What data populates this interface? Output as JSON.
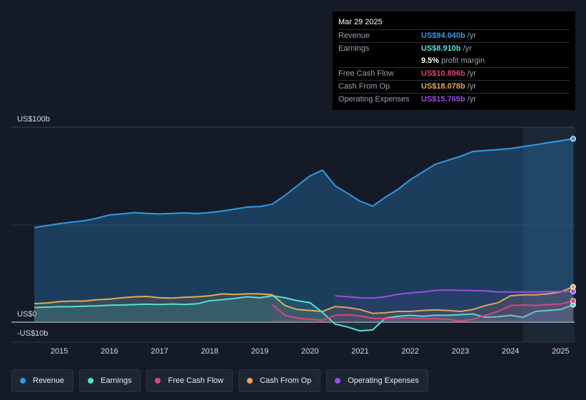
{
  "chart_data": {
    "type": "area",
    "title": "",
    "ylabel_top": "US$100b",
    "ylabel_zero": "US$0",
    "ylabel_bottom": "-US$10b",
    "ylim": [
      -10,
      100
    ],
    "xlim": [
      2014.5,
      2025.25
    ],
    "x_ticks": [
      2015,
      2016,
      2017,
      2018,
      2019,
      2020,
      2021,
      2022,
      2023,
      2024,
      2025
    ],
    "x_tick_labels": [
      "2015",
      "2016",
      "2017",
      "2018",
      "2019",
      "2020",
      "2021",
      "2022",
      "2023",
      "2024",
      "2025"
    ],
    "forecast_start": 2024.25,
    "series": [
      {
        "name": "Revenue",
        "key": "revenue",
        "color": "#2e9be8",
        "x": [
          2014.5,
          2014.75,
          2015.0,
          2015.25,
          2015.5,
          2015.75,
          2016.0,
          2016.25,
          2016.5,
          2016.75,
          2017.0,
          2017.25,
          2017.5,
          2017.75,
          2018.0,
          2018.25,
          2018.5,
          2018.75,
          2019.0,
          2019.25,
          2019.5,
          2019.75,
          2020.0,
          2020.25,
          2020.5,
          2020.75,
          2021.0,
          2021.25,
          2021.5,
          2021.75,
          2022.0,
          2022.25,
          2022.5,
          2022.75,
          2023.0,
          2023.25,
          2023.5,
          2023.75,
          2024.0,
          2024.25,
          2024.5,
          2024.75,
          2025.0,
          2025.25
        ],
        "values": [
          48.5,
          49.5,
          50.5,
          51.3,
          52.0,
          53.3,
          55.0,
          55.5,
          56.2,
          55.8,
          55.5,
          55.8,
          56.0,
          55.7,
          56.2,
          57.0,
          58.0,
          59.0,
          59.3,
          60.5,
          65.0,
          70.0,
          75.0,
          78.0,
          70.0,
          66.0,
          62.0,
          59.5,
          64.0,
          68.0,
          73.0,
          77.0,
          81.0,
          83.0,
          85.0,
          87.5,
          88.0,
          88.5,
          89.0,
          90.0,
          91.0,
          92.0,
          93.0,
          94.04
        ]
      },
      {
        "name": "Earnings",
        "key": "earnings",
        "color": "#56e0d2",
        "x": [
          2014.5,
          2014.75,
          2015.0,
          2015.25,
          2015.5,
          2015.75,
          2016.0,
          2016.25,
          2016.5,
          2016.75,
          2017.0,
          2017.25,
          2017.5,
          2017.75,
          2018.0,
          2018.25,
          2018.5,
          2018.75,
          2019.0,
          2019.25,
          2019.5,
          2019.75,
          2020.0,
          2020.25,
          2020.5,
          2020.75,
          2021.0,
          2021.25,
          2021.5,
          2021.75,
          2022.0,
          2022.25,
          2022.5,
          2022.75,
          2023.0,
          2023.25,
          2023.5,
          2023.75,
          2024.0,
          2024.25,
          2024.5,
          2024.75,
          2025.0,
          2025.25
        ],
        "values": [
          7.5,
          7.7,
          7.9,
          8.0,
          8.2,
          8.3,
          8.7,
          8.8,
          9.0,
          9.2,
          9.0,
          9.3,
          9.1,
          9.4,
          11.0,
          11.5,
          12.2,
          13.0,
          12.5,
          13.5,
          12.5,
          11.0,
          10.0,
          5.0,
          -1.0,
          -2.5,
          -4.5,
          -4.0,
          2.0,
          3.0,
          3.5,
          3.0,
          3.5,
          3.5,
          3.8,
          4.2,
          2.5,
          2.8,
          3.5,
          2.5,
          5.5,
          6.0,
          6.5,
          8.91
        ]
      },
      {
        "name": "Free Cash Flow",
        "key": "fcf",
        "color": "#d6477c",
        "x": [
          2019.25,
          2019.5,
          2019.75,
          2020.0,
          2020.25,
          2020.5,
          2020.75,
          2021.0,
          2021.25,
          2021.5,
          2021.75,
          2022.0,
          2022.25,
          2022.5,
          2022.75,
          2023.0,
          2023.25,
          2023.5,
          2023.75,
          2024.0,
          2024.25,
          2024.5,
          2024.75,
          2025.0,
          2025.25
        ],
        "values": [
          9.0,
          3.5,
          2.0,
          1.5,
          1.0,
          3.5,
          3.8,
          3.2,
          2.0,
          1.8,
          2.2,
          2.0,
          1.8,
          1.8,
          1.5,
          0.5,
          1.5,
          3.5,
          5.5,
          8.5,
          8.8,
          8.5,
          9.0,
          9.3,
          10.896
        ]
      },
      {
        "name": "Cash From Op",
        "key": "cfo",
        "color": "#e7a953",
        "x": [
          2014.5,
          2014.75,
          2015.0,
          2015.25,
          2015.5,
          2015.75,
          2016.0,
          2016.25,
          2016.5,
          2016.75,
          2017.0,
          2017.25,
          2017.5,
          2017.75,
          2018.0,
          2018.25,
          2018.5,
          2018.75,
          2019.0,
          2019.25,
          2019.5,
          2019.75,
          2020.0,
          2020.25,
          2020.5,
          2020.75,
          2021.0,
          2021.25,
          2021.5,
          2021.75,
          2022.0,
          2022.25,
          2022.5,
          2022.75,
          2023.0,
          2023.25,
          2023.5,
          2023.75,
          2024.0,
          2024.25,
          2024.5,
          2024.75,
          2025.0,
          2025.25
        ],
        "values": [
          9.5,
          9.8,
          10.5,
          10.8,
          10.8,
          11.5,
          11.8,
          12.5,
          13.0,
          13.2,
          12.5,
          12.3,
          12.8,
          13.0,
          13.5,
          14.5,
          14.2,
          14.5,
          14.5,
          14.0,
          8.5,
          6.5,
          6.0,
          5.5,
          8.0,
          7.5,
          6.5,
          4.5,
          4.8,
          5.5,
          5.5,
          6.0,
          6.3,
          6.0,
          5.5,
          6.5,
          8.5,
          10.0,
          13.5,
          14.0,
          14.0,
          14.5,
          15.5,
          18.078
        ]
      },
      {
        "name": "Operating Expenses",
        "key": "opex",
        "color": "#9b4ee3",
        "x": [
          2020.5,
          2020.75,
          2021.0,
          2021.25,
          2021.5,
          2021.75,
          2022.0,
          2022.25,
          2022.5,
          2022.75,
          2023.0,
          2023.25,
          2023.5,
          2023.75,
          2024.0,
          2024.25,
          2024.5,
          2024.75,
          2025.0,
          2025.25
        ],
        "values": [
          13.5,
          13.0,
          12.5,
          12.3,
          13.0,
          14.3,
          15.0,
          15.5,
          16.3,
          16.5,
          16.3,
          16.2,
          16.0,
          15.5,
          15.5,
          15.5,
          15.5,
          15.6,
          15.7,
          15.765
        ]
      }
    ]
  },
  "tooltip": {
    "date": "Mar 29 2025",
    "revenue_label": "Revenue",
    "revenue_value": "US$94.040b",
    "revenue_unit": "/yr",
    "earnings_label": "Earnings",
    "earnings_value": "US$8.910b",
    "earnings_unit": "/yr",
    "margin_value": "9.5%",
    "margin_text": "profit margin",
    "fcf_label": "Free Cash Flow",
    "fcf_value": "US$10.896b",
    "fcf_unit": "/yr",
    "cfo_label": "Cash From Op",
    "cfo_value": "US$18.078b",
    "cfo_unit": "/yr",
    "opex_label": "Operating Expenses",
    "opex_value": "US$15.765b",
    "opex_unit": "/yr"
  },
  "legend": {
    "revenue": "Revenue",
    "earnings": "Earnings",
    "fcf": "Free Cash Flow",
    "cfo": "Cash From Op",
    "opex": "Operating Expenses"
  },
  "colors": {
    "revenue": "#2e9be8",
    "earnings": "#56e0d2",
    "fcf": "#d6477c",
    "cfo": "#e7a953",
    "opex": "#9b4ee3"
  }
}
